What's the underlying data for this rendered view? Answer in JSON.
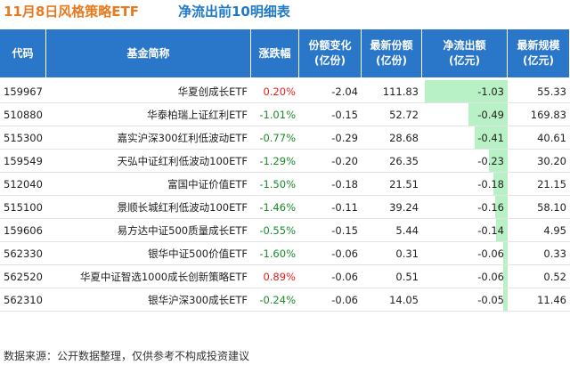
{
  "title": {
    "part1": "11月8日风格策略ETF",
    "part2": "净流出前10明细表"
  },
  "table": {
    "header": [
      "代码",
      "基金简称",
      "涨跌幅",
      "份额变化\n(亿份)",
      "最新份额\n(亿份)",
      "净流出额\n(亿元)",
      "最新规模\n(亿元)"
    ],
    "rows": [
      [
        "159967",
        "华夏创成长ETF",
        "0.20%",
        "-2.04",
        "111.83",
        "-1.03",
        "55.33"
      ],
      [
        "510880",
        "华泰柏瑞上证红利ETF",
        "-1.01%",
        "-0.15",
        "52.72",
        "-0.49",
        "169.83"
      ],
      [
        "515300",
        "嘉实沪深300红利低波动ETF",
        "-0.77%",
        "-0.29",
        "28.68",
        "-0.41",
        "40.61"
      ],
      [
        "159549",
        "天弘中证红利低波动100ETF",
        "-1.29%",
        "-0.20",
        "26.35",
        "-0.23",
        "30.20"
      ],
      [
        "512040",
        "富国中证价值ETF",
        "-1.50%",
        "-0.18",
        "21.51",
        "-0.18",
        "21.15"
      ],
      [
        "515100",
        "景顺长城红利低波动100ETF",
        "-1.46%",
        "-0.11",
        "39.24",
        "-0.16",
        "58.10"
      ],
      [
        "159606",
        "易方达中证500质量成长ETF",
        "-0.55%",
        "-0.15",
        "5.44",
        "-0.14",
        "4.95"
      ],
      [
        "562330",
        "银华中证500价值ETF",
        "-1.60%",
        "-0.06",
        "0.31",
        "-0.06",
        "0.33"
      ],
      [
        "562520",
        "华夏中证智选1000成长创新策略ETF",
        "0.89%",
        "-0.06",
        "0.51",
        "-0.06",
        "0.52"
      ],
      [
        "562310",
        "银华沪深300成长ETF",
        "-0.24%",
        "-0.06",
        "14.05",
        "-0.05",
        "11.46"
      ]
    ]
  },
  "footer": "数据来源：公开数据整理，仅供参考不构成投资建议"
}
